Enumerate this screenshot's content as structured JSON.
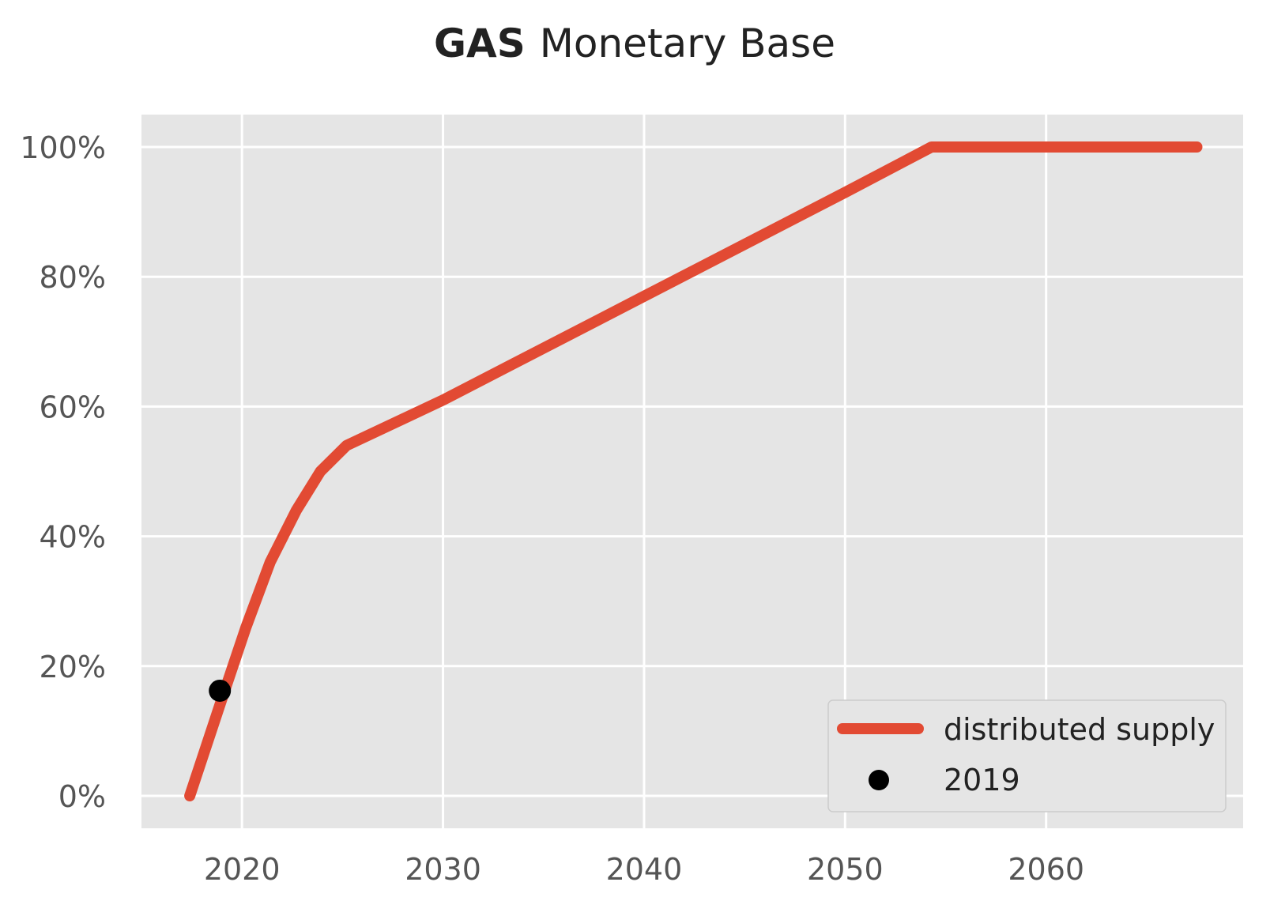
{
  "chart_data": {
    "type": "line",
    "title_bold": "GAS",
    "title_rest": "Monetary Base",
    "xlabel": "",
    "ylabel": "",
    "xlim": [
      2015,
      2069.8
    ],
    "ylim": [
      -5,
      105
    ],
    "x_ticks": [
      2020,
      2030,
      2040,
      2050,
      2060
    ],
    "y_ticks": [
      0,
      20,
      40,
      60,
      80,
      100
    ],
    "y_tick_suffix": "%",
    "grid": true,
    "legend_position": "lower-right",
    "series": [
      {
        "name": "distributed supply",
        "color": "#e24a33",
        "kind": "line",
        "x": [
          2017.4,
          2018.9,
          2020.2,
          2021.4,
          2022.7,
          2023.9,
          2025.2,
          2030,
          2040,
          2050,
          2054.3,
          2067.5
        ],
        "y": [
          0,
          14,
          26,
          36,
          44,
          50,
          54,
          61,
          77,
          93,
          100,
          100
        ]
      },
      {
        "name": "2019",
        "color": "#000000",
        "kind": "marker",
        "x": [
          2018.9
        ],
        "y": [
          16.2
        ]
      }
    ]
  }
}
